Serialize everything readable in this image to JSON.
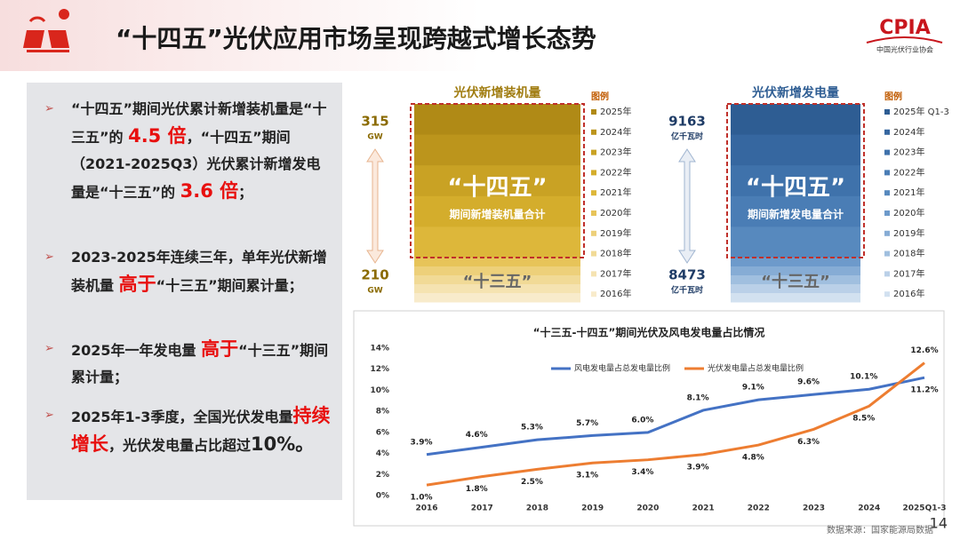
{
  "header": {
    "title": "“十四五”光伏应用市场呈现跨越式增长态势",
    "logo": "CPIA",
    "logo_sub": "中国光伏行业协会"
  },
  "bullets": [
    [
      {
        "text": "“十四五”期间光伏累计新增装机量是“十三五”的 "
      },
      {
        "text": "4.5 倍",
        "color": "#e8100f",
        "large": true
      },
      {
        "text": "，“十四五”期间（2021-2025Q3）光伏累计新增发电量是“十三五”的 "
      },
      {
        "text": "3.6 倍",
        "color": "#e8100f",
        "large": true
      },
      {
        "text": "；"
      }
    ],
    [
      {
        "text": "2023-2025年连续三年，单年光伏新增装机量 "
      },
      {
        "text": "高于",
        "color": "#e8100f",
        "large": true
      },
      {
        "text": "“十三五”期间累计量；"
      }
    ],
    [
      {
        "text": "2025年一年发电量 "
      },
      {
        "text": "高于",
        "color": "#e8100f",
        "large": true
      },
      {
        "text": "“十三五”期间累计量；"
      }
    ],
    [
      {
        "text": "2025年1-3季度，全国光伏发电量"
      },
      {
        "text": "持续增长",
        "color": "#e8100f",
        "large": true
      },
      {
        "text": "，光伏发电量占比超过"
      },
      {
        "text": "10%。",
        "large": true
      }
    ]
  ],
  "stacks": [
    {
      "title": "光伏新增装机量",
      "top_value": "315",
      "top_unit": "GW",
      "bottom_value": "210",
      "bottom_unit": "GW",
      "big_label": "“十四五”",
      "sub_label": "期间新增装机量合计",
      "lower_label": "“十三五”",
      "legend_title": "图例",
      "legend": [
        {
          "label": "2025年",
          "color": "#b08a16"
        },
        {
          "label": "2024年",
          "color": "#bc951c"
        },
        {
          "label": "2023年",
          "color": "#c9a224"
        },
        {
          "label": "2022年",
          "color": "#d4ad2c"
        },
        {
          "label": "2021年",
          "color": "#ddb73a"
        },
        {
          "label": "2020年",
          "color": "#e7c459"
        },
        {
          "label": "2019年",
          "color": "#edd07a"
        },
        {
          "label": "2018年",
          "color": "#f1da96"
        },
        {
          "label": "2017年",
          "color": "#f5e3b1"
        },
        {
          "label": "2016年",
          "color": "#f8ebcb"
        }
      ]
    },
    {
      "title": "光伏新增发电量",
      "top_value": "9163",
      "top_unit": "亿千瓦时",
      "bottom_value": "8473",
      "bottom_unit": "亿千瓦时",
      "big_label": "“十四五”",
      "sub_label": "期间新增发电量合计",
      "lower_label": "“十三五”",
      "legend_title": "图例",
      "legend": [
        {
          "label": "2025年 Q1-3",
          "color": "#2e5d93"
        },
        {
          "label": "2024年",
          "color": "#3667a0"
        },
        {
          "label": "2023年",
          "color": "#3f72ab"
        },
        {
          "label": "2022年",
          "color": "#4a7db5"
        },
        {
          "label": "2021年",
          "color": "#5789be"
        },
        {
          "label": "2020年",
          "color": "#6d9acb"
        },
        {
          "label": "2019年",
          "color": "#86acd5"
        },
        {
          "label": "2018年",
          "color": "#a0bfdf"
        },
        {
          "label": "2017年",
          "color": "#bad0e8"
        },
        {
          "label": "2016年",
          "color": "#d2e1f0"
        }
      ]
    }
  ],
  "chart_data": {
    "type": "line",
    "title": "“十三五-十四五”期间光伏及风电发电量占比情况",
    "categories": [
      "2016",
      "2017",
      "2018",
      "2019",
      "2020",
      "2021",
      "2022",
      "2023",
      "2024",
      "2025Q1-3"
    ],
    "series": [
      {
        "name": "风电发电量占总发电量比例",
        "color": "#4472c4",
        "values": [
          3.9,
          4.6,
          5.3,
          5.7,
          6.0,
          8.1,
          9.1,
          9.6,
          10.1,
          11.2
        ],
        "value_labels": [
          "3.9%",
          "4.6%",
          "5.3%",
          "5.7%",
          "6.0%",
          "8.1%",
          "9.1%",
          "9.6%",
          "10.1%",
          "11.2%"
        ]
      },
      {
        "name": "光伏发电量占总发电量比例",
        "color": "#ed7d31",
        "values": [
          1.0,
          1.8,
          2.5,
          3.1,
          3.4,
          3.9,
          4.8,
          6.3,
          8.5,
          12.6
        ],
        "value_labels": [
          "1.0%",
          "1.8%",
          "2.5%",
          "3.1%",
          "3.4%",
          "3.9%",
          "4.8%",
          "6.3%",
          "8.5%",
          "12.6%"
        ]
      }
    ],
    "ylim": [
      0,
      14
    ],
    "yticks": [
      {
        "value": 0,
        "label": "0%"
      },
      {
        "value": 2,
        "label": "2%"
      },
      {
        "value": 4,
        "label": "4%"
      },
      {
        "value": 6,
        "label": "6%"
      },
      {
        "value": 8,
        "label": "8%"
      },
      {
        "value": 10,
        "label": "10%"
      },
      {
        "value": 12,
        "label": "12%"
      },
      {
        "value": 14,
        "label": "14%"
      }
    ],
    "grid": false
  },
  "footer": {
    "source": "数据来源：国家能源局数据",
    "page": "14"
  }
}
